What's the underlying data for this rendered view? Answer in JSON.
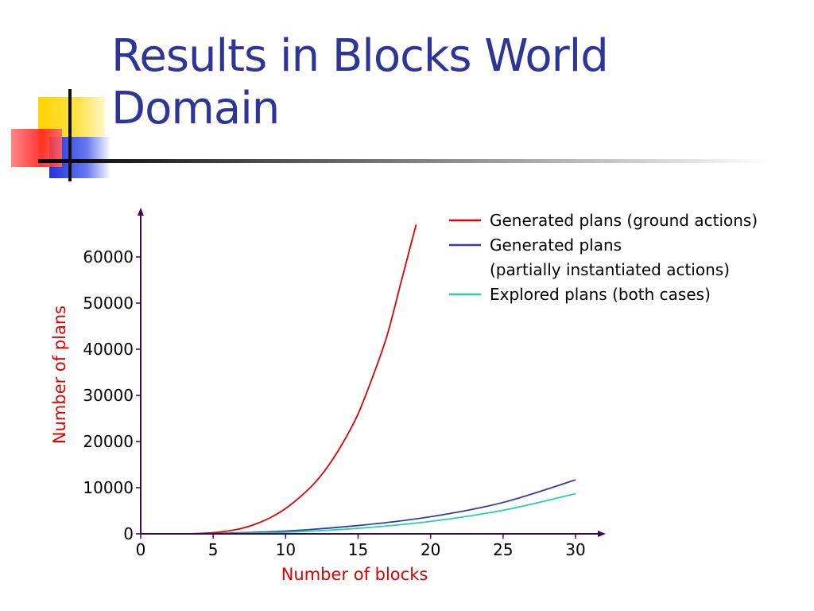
{
  "slide": {
    "title_line1": "Results in Blocks World",
    "title_line2": "Domain"
  },
  "colors": {
    "title": "#2f3597",
    "axis_label": "#e00000",
    "axis": "#3a0a4a"
  },
  "chart_data": {
    "type": "line",
    "xlabel": "Number of blocks",
    "ylabel": "Number of plans",
    "xlim": [
      0,
      32
    ],
    "ylim": [
      0,
      68000
    ],
    "x_ticks": [
      0,
      5,
      10,
      15,
      20,
      25,
      30
    ],
    "x_tick_labels": [
      "0",
      "5",
      "10",
      "15",
      "20",
      "25",
      "30"
    ],
    "y_ticks": [
      0,
      10000,
      20000,
      30000,
      40000,
      50000,
      60000
    ],
    "y_tick_labels": [
      "0",
      "10000",
      "20000",
      "30000",
      "40000",
      "50000",
      "60000"
    ],
    "legend_position": "top-right",
    "series": [
      {
        "name": "Generated plans (ground actions)",
        "color": "#e00000",
        "x": [
          2,
          3,
          4,
          5,
          6,
          7,
          8,
          9,
          10,
          11,
          12,
          13,
          14,
          15,
          16,
          17,
          18,
          19
        ],
        "y": [
          0,
          10,
          80,
          250,
          600,
          1200,
          2200,
          3600,
          5500,
          8000,
          11000,
          15000,
          20000,
          26000,
          34000,
          43000,
          55000,
          67000
        ]
      },
      {
        "name": "Generated plans\n(partially instantiated actions)",
        "name_lines": [
          "Generated plans",
          "(partially instantiated actions)"
        ],
        "color": "#3a3aaa",
        "x": [
          2,
          5,
          10,
          15,
          20,
          25,
          30
        ],
        "y": [
          0,
          80,
          600,
          1800,
          3700,
          6800,
          11700
        ]
      },
      {
        "name": "Explored plans (both cases)",
        "color": "#22d3a6",
        "x": [
          2,
          5,
          10,
          15,
          20,
          25,
          30
        ],
        "y": [
          0,
          40,
          350,
          1200,
          2700,
          5100,
          8700
        ]
      }
    ]
  }
}
